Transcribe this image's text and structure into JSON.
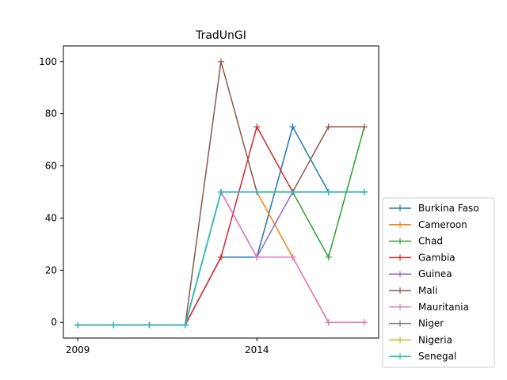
{
  "chart_data": {
    "type": "line",
    "title": "TradUnGI",
    "xlabel": "",
    "ylabel": "",
    "x": [
      2009,
      2010,
      2011,
      2012,
      2013,
      2014,
      2015,
      2016,
      2017
    ],
    "xlim": [
      2008.6,
      2017.4
    ],
    "ylim": [
      -6,
      106
    ],
    "x_ticks": [
      2009,
      2014
    ],
    "y_ticks": [
      0,
      20,
      40,
      60,
      80,
      100
    ],
    "grid": false,
    "legend_position": "lower right, outside plot",
    "marker": "+",
    "series": [
      {
        "name": "Burkina Faso",
        "color": "#1f77b4",
        "values": [
          -1,
          -1,
          -1,
          -1,
          25,
          25,
          75,
          50,
          50
        ]
      },
      {
        "name": "Cameroon",
        "color": "#ff7f0e",
        "values": [
          -1,
          -1,
          -1,
          -1,
          50,
          50,
          25,
          0,
          0
        ]
      },
      {
        "name": "Chad",
        "color": "#2ca02c",
        "values": [
          -1,
          -1,
          -1,
          -1,
          50,
          50,
          50,
          25,
          75
        ]
      },
      {
        "name": "Gambia",
        "color": "#d62728",
        "values": [
          -1,
          -1,
          -1,
          -1,
          25,
          75,
          50,
          50,
          50
        ]
      },
      {
        "name": "Guinea",
        "color": "#9467bd",
        "values": [
          -1,
          -1,
          -1,
          -1,
          50,
          25,
          50,
          50,
          50
        ]
      },
      {
        "name": "Mali",
        "color": "#8c564b",
        "values": [
          -1,
          -1,
          -1,
          -1,
          100,
          50,
          50,
          75,
          75
        ]
      },
      {
        "name": "Mauritania",
        "color": "#e377c2",
        "values": [
          -1,
          -1,
          -1,
          -1,
          50,
          25,
          25,
          0,
          0
        ]
      },
      {
        "name": "Niger",
        "color": "#7f7f7f",
        "values": [
          -1,
          -1,
          -1,
          -1,
          50,
          50,
          50,
          50,
          50
        ]
      },
      {
        "name": "Nigeria",
        "color": "#bcbd22",
        "values": [
          -1,
          -1,
          -1,
          -1,
          50,
          50,
          50,
          50,
          50
        ]
      },
      {
        "name": "Senegal",
        "color": "#17becf",
        "values": [
          -1,
          -1,
          -1,
          -1,
          50,
          50,
          50,
          50,
          50
        ]
      }
    ]
  }
}
